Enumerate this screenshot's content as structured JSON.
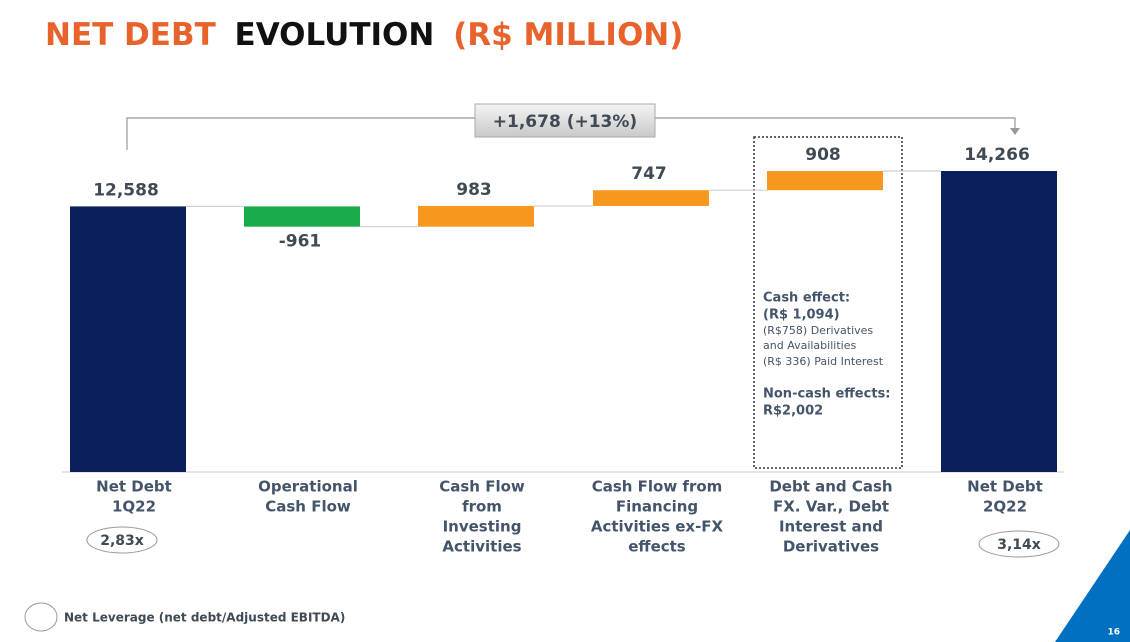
{
  "chart_data": {
    "type": "waterfall",
    "title": [
      "NET DEBT",
      "EVOLUTION",
      "(R$ MILLION)"
    ],
    "title_colors": [
      "#e8632b",
      "#111111",
      "#e8632b"
    ],
    "categories": [
      [
        "Net Debt",
        "1Q22"
      ],
      [
        "Operational",
        "Cash Flow"
      ],
      [
        "Cash Flow",
        "from",
        "Investing",
        "Activities"
      ],
      [
        "Cash Flow from",
        "Financing",
        "Activities ex-FX",
        "effects"
      ],
      [
        "Debt and Cash",
        "FX. Var., Debt",
        "Interest and",
        "Derivatives"
      ],
      [
        "Net Debt",
        "2Q22"
      ]
    ],
    "values": [
      12588,
      -961,
      983,
      747,
      908,
      14266
    ],
    "value_labels": [
      "12,588",
      "-961",
      "983",
      "747",
      "908",
      "14,266"
    ],
    "measure": [
      "total",
      "relative",
      "relative",
      "relative",
      "relative",
      "total"
    ],
    "colors": [
      "#0a1f5c",
      "#1aab4a",
      "#f7971e",
      "#f7971e",
      "#f7971e",
      "#0a1f5c"
    ],
    "change_label": "+1,678 (+13%)",
    "note_lines": [
      "Cash effect:",
      "(R$ 1,094)",
      "(R$758) Derivatives",
      "and Availabilities",
      "(R$ 336) Paid Interest",
      "Non-cash effects:",
      "R$2,002"
    ],
    "leverage": [
      "2,83x",
      "3,14x"
    ],
    "legend": "Net Leverage (net debt/Adjusted EBITDA)",
    "page_number": "16"
  }
}
